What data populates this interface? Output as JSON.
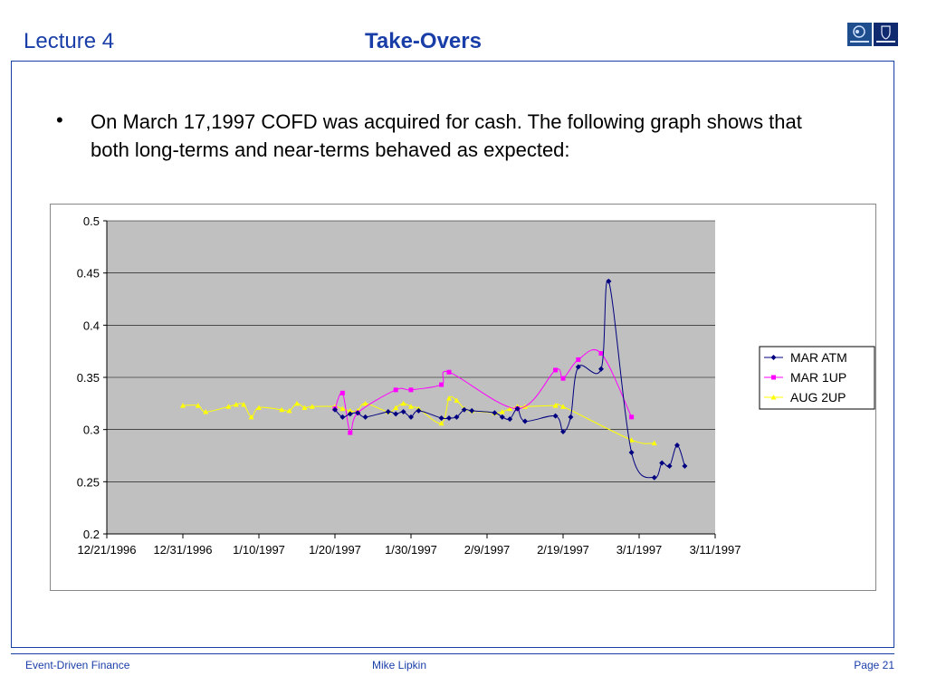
{
  "header": {
    "lecture": "Lecture 4",
    "title": "Take-Overs"
  },
  "slide": {
    "bullet": "On March 17,1997 COFD was acquired for cash. The following graph shows that both long-terms and near-terms behaved as expected:"
  },
  "footer": {
    "left": "Event-Driven Finance",
    "center": "Mike Lipkin",
    "right": "Page 21"
  },
  "colors": {
    "accent": "#1a3ea8",
    "plot_bg": "#c0c0c0"
  },
  "chart_data": {
    "type": "line",
    "title": "",
    "xlabel": "",
    "ylabel": "",
    "x_axis": "date",
    "xlim": [
      "1996-12-21",
      "1997-03-11"
    ],
    "ylim": [
      0.2,
      0.5
    ],
    "yticks": [
      "0.5",
      "0.45",
      "0.4",
      "0.35",
      "0.3",
      "0.25",
      "0.2"
    ],
    "xticks": [
      "12/21/1996",
      "12/31/1996",
      "1/10/1997",
      "1/20/1997",
      "1/30/1997",
      "2/9/1997",
      "2/19/1997",
      "3/1/1997",
      "3/11/1997"
    ],
    "grid": true,
    "legend_position": "right",
    "series": [
      {
        "name": "MAR ATM",
        "color": "#000080",
        "marker": "diamond",
        "points": [
          [
            "1997-01-20",
            0.319
          ],
          [
            "1997-01-21",
            0.312
          ],
          [
            "1997-01-22",
            0.315
          ],
          [
            "1997-01-23",
            0.316
          ],
          [
            "1997-01-24",
            0.312
          ],
          [
            "1997-01-27",
            0.317
          ],
          [
            "1997-01-28",
            0.315
          ],
          [
            "1997-01-29",
            0.317
          ],
          [
            "1997-01-30",
            0.312
          ],
          [
            "1997-01-31",
            0.318
          ],
          [
            "1997-02-03",
            0.311
          ],
          [
            "1997-02-04",
            0.311
          ],
          [
            "1997-02-05",
            0.312
          ],
          [
            "1997-02-06",
            0.319
          ],
          [
            "1997-02-07",
            0.318
          ],
          [
            "1997-02-10",
            0.316
          ],
          [
            "1997-02-11",
            0.312
          ],
          [
            "1997-02-12",
            0.31
          ],
          [
            "1997-02-13",
            0.32
          ],
          [
            "1997-02-14",
            0.308
          ],
          [
            "1997-02-18",
            0.313
          ],
          [
            "1997-02-19",
            0.298
          ],
          [
            "1997-02-20",
            0.312
          ],
          [
            "1997-02-21",
            0.36
          ],
          [
            "1997-02-24",
            0.358
          ],
          [
            "1997-02-25",
            0.442
          ],
          [
            "1997-02-28",
            0.278
          ],
          [
            "1997-03-03",
            0.254
          ],
          [
            "1997-03-04",
            0.268
          ],
          [
            "1997-03-05",
            0.265
          ],
          [
            "1997-03-06",
            0.285
          ],
          [
            "1997-03-07",
            0.265
          ]
        ]
      },
      {
        "name": "MAR 1UP",
        "color": "#ff00ff",
        "marker": "square",
        "points": [
          [
            "1997-01-20",
            0.32
          ],
          [
            "1997-01-21",
            0.335
          ],
          [
            "1997-01-22",
            0.297
          ],
          [
            "1997-01-23",
            0.316
          ],
          [
            "1997-01-28",
            0.338
          ],
          [
            "1997-01-30",
            0.338
          ],
          [
            "1997-02-03",
            0.343
          ],
          [
            "1997-02-04",
            0.355
          ],
          [
            "1997-02-13",
            0.32
          ],
          [
            "1997-02-18",
            0.357
          ],
          [
            "1997-02-19",
            0.349
          ],
          [
            "1997-02-21",
            0.367
          ],
          [
            "1997-02-24",
            0.373
          ],
          [
            "1997-02-28",
            0.312
          ]
        ]
      },
      {
        "name": "AUG 2UP",
        "color": "#ffff00",
        "marker": "triangle",
        "points": [
          [
            "1996-12-31",
            0.323
          ],
          [
            "1997-01-02",
            0.323
          ],
          [
            "1997-01-03",
            0.317
          ],
          [
            "1997-01-06",
            0.322
          ],
          [
            "1997-01-07",
            0.324
          ],
          [
            "1997-01-08",
            0.324
          ],
          [
            "1997-01-09",
            0.312
          ],
          [
            "1997-01-10",
            0.321
          ],
          [
            "1997-01-13",
            0.319
          ],
          [
            "1997-01-14",
            0.318
          ],
          [
            "1997-01-15",
            0.325
          ],
          [
            "1997-01-16",
            0.321
          ],
          [
            "1997-01-17",
            0.322
          ],
          [
            "1997-01-20",
            0.322
          ],
          [
            "1997-01-21",
            0.32
          ],
          [
            "1997-01-22",
            0.318
          ],
          [
            "1997-01-23",
            0.318
          ],
          [
            "1997-01-24",
            0.325
          ],
          [
            "1997-01-27",
            0.317
          ],
          [
            "1997-01-28",
            0.321
          ],
          [
            "1997-01-29",
            0.325
          ],
          [
            "1997-01-30",
            0.322
          ],
          [
            "1997-01-31",
            0.32
          ],
          [
            "1997-02-03",
            0.306
          ],
          [
            "1997-02-04",
            0.33
          ],
          [
            "1997-02-05",
            0.328
          ],
          [
            "1997-02-06",
            0.32
          ],
          [
            "1997-02-07",
            0.318
          ],
          [
            "1997-02-10",
            0.316
          ],
          [
            "1997-02-11",
            0.317
          ],
          [
            "1997-02-12",
            0.32
          ],
          [
            "1997-02-13",
            0.322
          ],
          [
            "1997-02-14",
            0.322
          ],
          [
            "1997-02-18",
            0.323
          ],
          [
            "1997-02-19",
            0.322
          ],
          [
            "1997-02-28",
            0.29
          ],
          [
            "1997-03-03",
            0.287
          ]
        ]
      }
    ]
  }
}
